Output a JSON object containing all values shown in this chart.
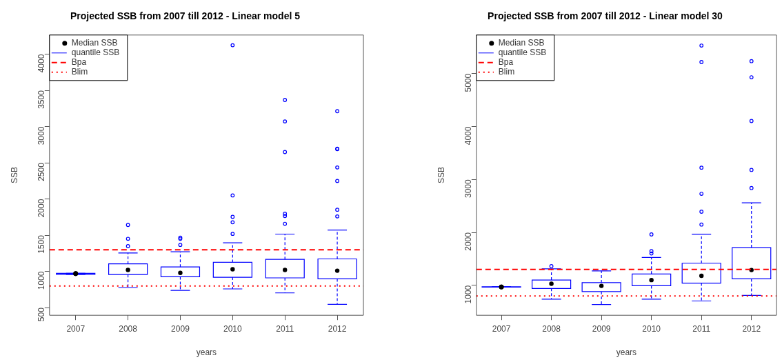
{
  "chart_data": [
    {
      "type": "box",
      "title": "Projected SSB from 2007 till 2012 - Linear model 5",
      "xlabel": "years",
      "ylabel": "SSB",
      "categories": [
        "2007",
        "2008",
        "2009",
        "2010",
        "2011",
        "2012"
      ],
      "ylim": [
        395,
        4265
      ],
      "yticks": [
        500,
        1000,
        1500,
        2000,
        2500,
        3000,
        3500,
        4000
      ],
      "grid": false,
      "legend": "top left",
      "series": [
        {
          "name": "Median SSB",
          "type": "scatter",
          "color": "#000000",
          "marker": "circle",
          "values": [
            970,
            null,
            null,
            null,
            null,
            null
          ]
        },
        {
          "name": "quantile SSB",
          "type": "box",
          "color": "#0000ff",
          "boxes": [
            {
              "low": 960,
              "q1": 960,
              "median": 970,
              "q3": 975,
              "high": 975
            },
            {
              "low": 778,
              "q1": 957,
              "median": 1020,
              "q3": 1105,
              "high": 1256,
              "outliers": [
                1349,
                1451,
                1642
              ]
            },
            {
              "low": 738,
              "q1": 926,
              "median": 980,
              "q3": 1062,
              "high": 1272,
              "outliers": [
                1367,
                1451,
                1466
              ]
            },
            {
              "low": 759,
              "q1": 920,
              "median": 1030,
              "q3": 1126,
              "high": 1395,
              "outliers": [
                1519,
                1679,
                1754,
                2050,
                4124
              ]
            },
            {
              "low": 704,
              "q1": 911,
              "median": 1020,
              "q3": 1167,
              "high": 1516,
              "outliers": [
                1658,
                1766,
                1797,
                2649,
                3072,
                3368
              ]
            },
            {
              "low": 546,
              "q1": 898,
              "median": 1010,
              "q3": 1173,
              "high": 1571,
              "outliers": [
                1760,
                1852,
                2250,
                2436,
                2689,
                2695,
                3213
              ]
            }
          ]
        }
      ],
      "ref_lines": [
        {
          "axis": "y",
          "value": 1300,
          "label": "Bpa",
          "color": "#ff0000",
          "line_style": "dashed"
        },
        {
          "axis": "y",
          "value": 800,
          "label": "Blim",
          "color": "#ff0000",
          "line_style": "dotted"
        }
      ]
    },
    {
      "type": "box",
      "title": "Projected SSB from 2007 till 2012 - Linear model 30",
      "xlabel": "years",
      "ylabel": "SSB",
      "categories": [
        "2007",
        "2008",
        "2009",
        "2010",
        "2011",
        "2012"
      ],
      "ylim": [
        435,
        5730
      ],
      "yticks": [
        1000,
        2000,
        3000,
        4000,
        5000
      ],
      "grid": false,
      "legend": "top left",
      "series": [
        {
          "name": "Median SSB",
          "type": "scatter",
          "color": "#000000",
          "marker": "circle",
          "values": [
            970,
            null,
            null,
            null,
            null,
            null
          ]
        },
        {
          "name": "quantile SSB",
          "type": "box",
          "color": "#0000ff",
          "boxes": [
            {
              "low": 966,
              "q1": 966,
              "median": 970,
              "q3": 974,
              "high": 974
            },
            {
              "low": 738,
              "q1": 941,
              "median": 1030,
              "q3": 1101,
              "high": 1312,
              "outliers": [
                1363
              ]
            },
            {
              "low": 637,
              "q1": 882,
              "median": 990,
              "q3": 1051,
              "high": 1274
            },
            {
              "low": 738,
              "q1": 992,
              "median": 1100,
              "q3": 1215,
              "high": 1527,
              "outliers": [
                1603,
                1646,
                1962
              ]
            },
            {
              "low": 705,
              "q1": 1042,
              "median": 1180,
              "q3": 1418,
              "high": 1966,
              "outliers": [
                2148,
                2392,
                2730,
                3223,
                5219,
                5531
              ]
            },
            {
              "low": 810,
              "q1": 1122,
              "median": 1290,
              "q3": 1713,
              "high": 2561,
              "outliers": [
                2839,
                3181,
                4105,
                4932,
                5236
              ]
            }
          ]
        }
      ],
      "ref_lines": [
        {
          "axis": "y",
          "value": 1300,
          "label": "Bpa",
          "color": "#ff0000",
          "line_style": "dashed"
        },
        {
          "axis": "y",
          "value": 800,
          "label": "Blim",
          "color": "#ff0000",
          "line_style": "dotted"
        }
      ]
    }
  ]
}
